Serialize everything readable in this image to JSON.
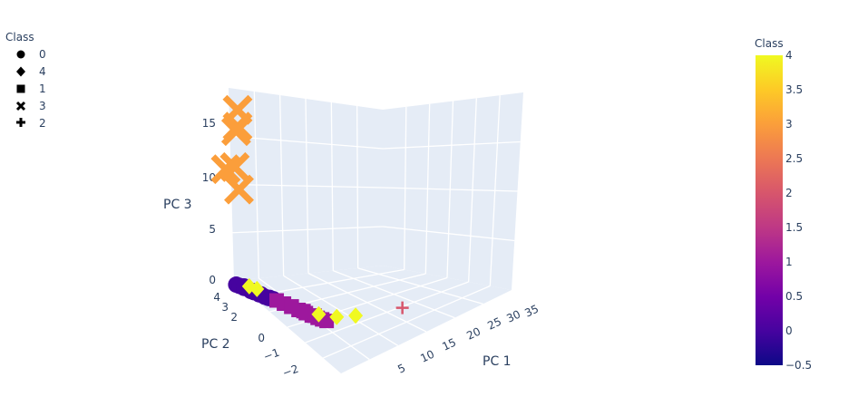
{
  "chart_data": {
    "type": "scatter3d",
    "title": "",
    "axes": {
      "x": {
        "label": "PC 1",
        "ticks": [
          "5",
          "10",
          "15",
          "20",
          "25",
          "30",
          "35"
        ]
      },
      "y": {
        "label": "PC 2",
        "ticks": [
          "4",
          "3",
          "2",
          "0",
          "−1",
          "−2"
        ]
      },
      "z": {
        "label": "PC 3",
        "ticks": [
          "15",
          "10",
          "5",
          "0"
        ]
      }
    },
    "legend": {
      "title": "Class",
      "entries": [
        {
          "label": "0",
          "symbol": "circle"
        },
        {
          "label": "4",
          "symbol": "diamond"
        },
        {
          "label": "1",
          "symbol": "square"
        },
        {
          "label": "3",
          "symbol": "x"
        },
        {
          "label": "2",
          "symbol": "cross"
        }
      ]
    },
    "colorbar": {
      "title": "Class",
      "ticks": [
        "4",
        "3.5",
        "3",
        "2.5",
        "2",
        "1.5",
        "1",
        "0.5",
        "0",
        "−0.5"
      ],
      "range": [
        -0.5,
        4
      ]
    },
    "series": [
      {
        "name": "3",
        "symbol": "x",
        "class_value": 3,
        "points": [
          [
            2,
            2.2,
            16.8
          ],
          [
            2,
            2.2,
            15.2
          ],
          [
            2,
            2.3,
            14.7
          ],
          [
            3.5,
            3.7,
            10.2
          ],
          [
            2,
            2.4,
            11.2
          ],
          [
            2,
            2.1,
            9.3
          ]
        ]
      },
      {
        "name": "2",
        "symbol": "cross",
        "class_value": 2,
        "points": [
          [
            31,
            3.2,
            1.2
          ]
        ]
      },
      {
        "name": "0",
        "symbol": "circle",
        "class_value": 0,
        "points": [
          [
            2,
            2.3,
            0.1
          ],
          [
            2.3,
            2.2,
            0.1
          ],
          [
            2.6,
            2.0,
            0.1
          ],
          [
            3,
            1.7,
            0.1
          ],
          [
            3.3,
            1.6,
            0.1
          ],
          [
            3.7,
            1.4,
            0.1
          ],
          [
            4.1,
            1.2,
            0.1
          ],
          [
            4.5,
            1.1,
            0.1
          ],
          [
            2.8,
            2.1,
            0.2
          ],
          [
            3.5,
            1.8,
            0.1
          ],
          [
            4.2,
            1.5,
            0.1
          ],
          [
            4.9,
            1.2,
            0.1
          ],
          [
            5.3,
            1.1,
            0.1
          ]
        ]
      },
      {
        "name": "1",
        "symbol": "square",
        "class_value": 1,
        "points": [
          [
            5.6,
            1.0,
            0.1
          ],
          [
            6.1,
            0.7,
            0.1
          ],
          [
            6.6,
            0.4,
            0.1
          ],
          [
            7.1,
            0.1,
            0.1
          ],
          [
            7.6,
            -0.2,
            0.1
          ],
          [
            8.1,
            -0.4,
            0.1
          ],
          [
            8.6,
            -0.6,
            0.1
          ],
          [
            9.1,
            -0.7,
            0.1
          ],
          [
            9.6,
            -0.8,
            0.1
          ],
          [
            6.9,
            0.5,
            0.1
          ],
          [
            8.8,
            -0.3,
            0.1
          ],
          [
            7.9,
            0.1,
            0.1
          ]
        ]
      },
      {
        "name": "4",
        "symbol": "diamond",
        "class_value": 4,
        "points": [
          [
            4.8,
            2.6,
            0.1
          ],
          [
            5.6,
            2.4,
            0.1
          ],
          [
            10.6,
            0.2,
            0.1
          ],
          [
            14.2,
            0.5,
            0.1
          ],
          [
            20,
            1.7,
            0.1
          ]
        ]
      }
    ]
  }
}
